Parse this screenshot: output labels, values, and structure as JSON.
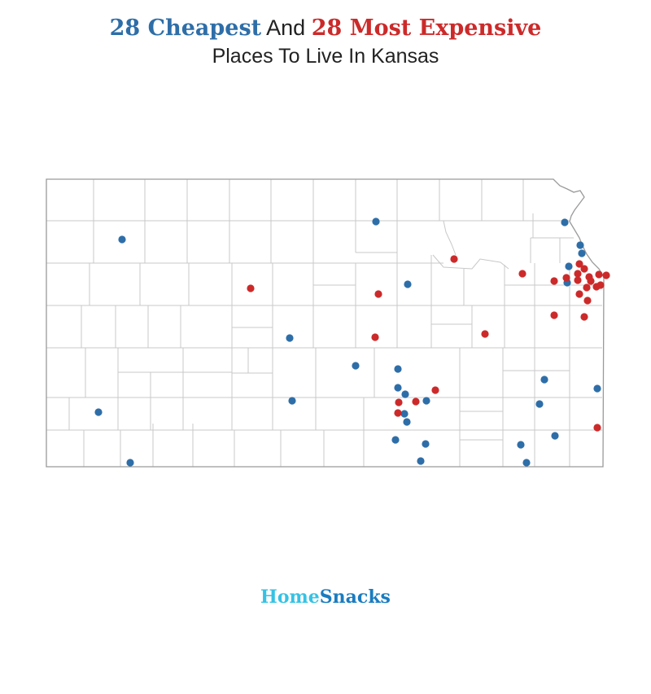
{
  "title": {
    "cheap_part": "28 Cheapest",
    "and_part": "And",
    "expensive_part": "28 Most Expensive",
    "line2": "Places To Live In Kansas"
  },
  "colors": {
    "cheap": "#2e6ea8",
    "expensive": "#cc2a2a",
    "county_lines": "#c8c8c8",
    "border": "#9a9a9a"
  },
  "logo": {
    "part1": "Home",
    "part2": "Snacks"
  }
}
